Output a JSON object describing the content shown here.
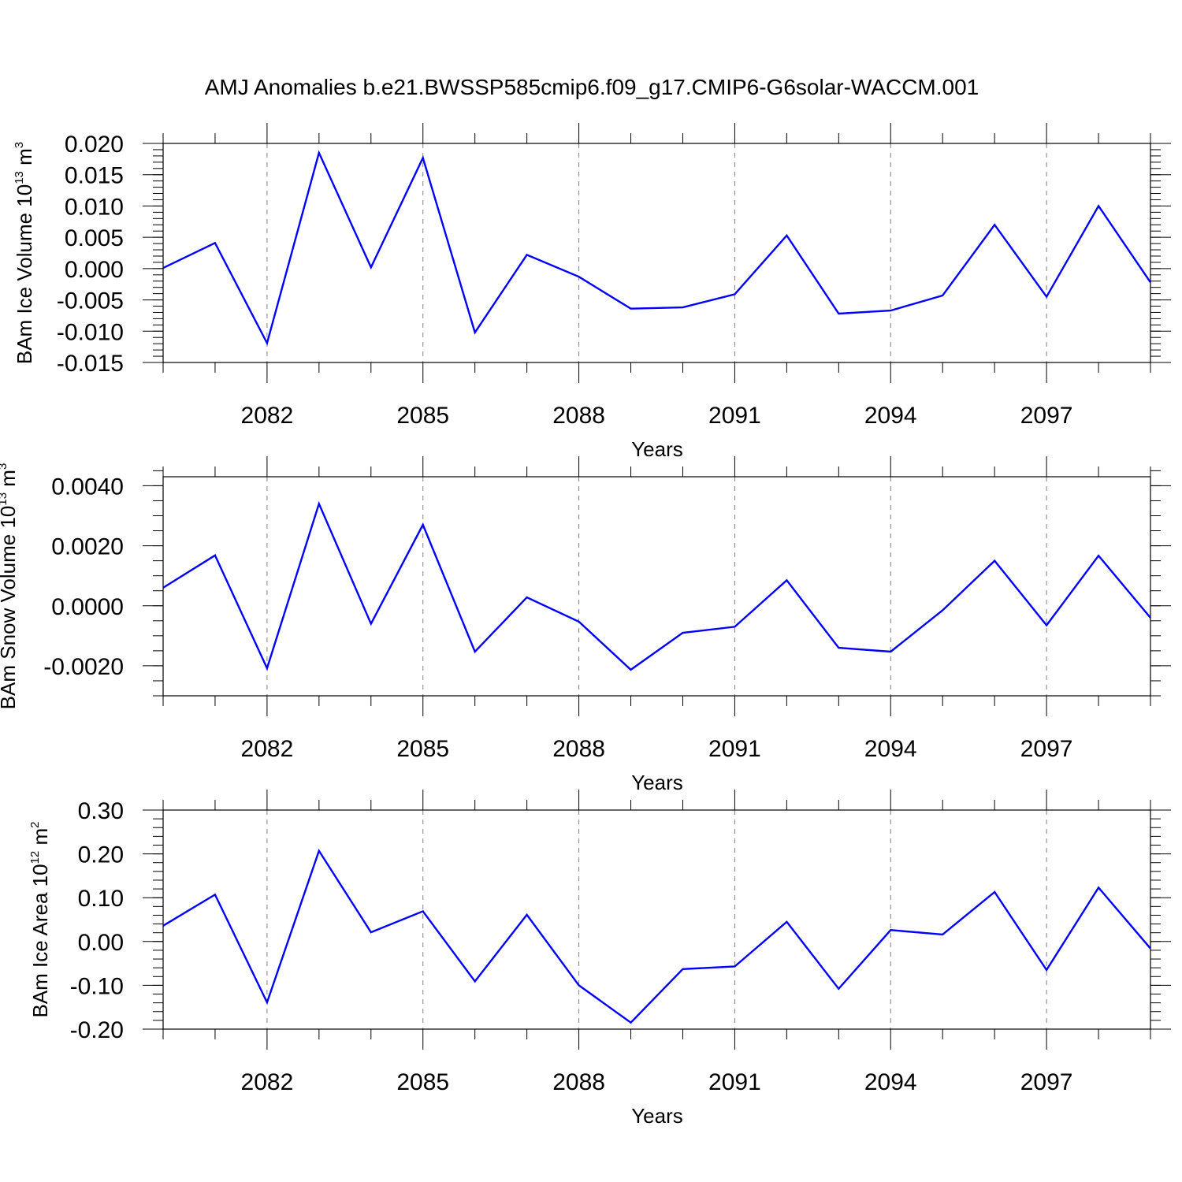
{
  "title": "AMJ Anomalies b.e21.BWSSP585cmip6.f09_g17.CMIP6-G6solar-WACCM.001",
  "colors": {
    "series": "#0000ff",
    "grid": "#808080",
    "axes": "#000000"
  },
  "chart_data": [
    {
      "type": "line",
      "xlabel": "Years",
      "ylabel": {
        "prefix": "BAm Ice Volume 10",
        "exponent": "13",
        "middle": " m",
        "unit_exponent": "3"
      },
      "xlim": [
        2080,
        2099
      ],
      "ylim": [
        -0.015,
        0.02
      ],
      "yticks": [
        -0.015,
        -0.01,
        -0.005,
        0.0,
        0.005,
        0.01,
        0.015,
        0.02
      ],
      "ytick_labels": [
        "-0.015",
        "-0.010",
        "-0.005",
        "0.000",
        "0.005",
        "0.010",
        "0.015",
        "0.020"
      ],
      "yminor_step": 0.001,
      "xticks": [
        2082,
        2085,
        2088,
        2091,
        2094,
        2097
      ],
      "xtick_labels": [
        "2082",
        "2085",
        "2088",
        "2091",
        "2094",
        "2097"
      ],
      "grid": "vertical dashed at major x ticks",
      "x": [
        2080,
        2081,
        2082,
        2083,
        2084,
        2085,
        2086,
        2087,
        2088,
        2089,
        2090,
        2091,
        2092,
        2093,
        2094,
        2095,
        2096,
        2097,
        2098,
        2099
      ],
      "values": [
        0.0001,
        0.0041,
        -0.0119,
        0.0185,
        0.0002,
        0.0177,
        -0.0102,
        0.0022,
        -0.0013,
        -0.0064,
        -0.0062,
        -0.0041,
        0.0053,
        -0.0072,
        -0.0067,
        -0.0043,
        0.007,
        -0.0045,
        0.01,
        -0.0022
      ]
    },
    {
      "type": "line",
      "xlabel": "Years",
      "ylabel": {
        "prefix": "BAm Snow Volume 10",
        "exponent": "13",
        "middle": " m",
        "unit_exponent": "3"
      },
      "xlim": [
        2080,
        2099
      ],
      "ylim": [
        -0.003,
        0.0043
      ],
      "yticks": [
        -0.002,
        0.0,
        0.002,
        0.004
      ],
      "ytick_labels": [
        "-0.0020",
        "0.0000",
        "0.0020",
        "0.0040"
      ],
      "yminor_step": 0.0005,
      "xticks": [
        2082,
        2085,
        2088,
        2091,
        2094,
        2097
      ],
      "xtick_labels": [
        "2082",
        "2085",
        "2088",
        "2091",
        "2094",
        "2097"
      ],
      "grid": "vertical dashed at major x ticks",
      "x": [
        2080,
        2081,
        2082,
        2083,
        2084,
        2085,
        2086,
        2087,
        2088,
        2089,
        2090,
        2091,
        2092,
        2093,
        2094,
        2095,
        2096,
        2097,
        2098,
        2099
      ],
      "values": [
        0.0006,
        0.00168,
        -0.00208,
        0.0034,
        -0.0006,
        0.0027,
        -0.00153,
        0.00028,
        -0.00053,
        -0.00213,
        -0.0009,
        -0.0007,
        0.00085,
        -0.0014,
        -0.00153,
        -0.00015,
        0.0015,
        -0.00065,
        0.00167,
        -0.0004
      ]
    },
    {
      "type": "line",
      "xlabel": "Years",
      "ylabel": {
        "prefix": "BAm Ice Area 10",
        "exponent": "12",
        "middle": " m",
        "unit_exponent": "2"
      },
      "xlim": [
        2080,
        2099
      ],
      "ylim": [
        -0.2,
        0.3
      ],
      "yticks": [
        -0.2,
        -0.1,
        0.0,
        0.1,
        0.2,
        0.3
      ],
      "ytick_labels": [
        "-0.20",
        "-0.10",
        "0.00",
        "0.10",
        "0.20",
        "0.30"
      ],
      "yminor_step": 0.02,
      "xticks": [
        2082,
        2085,
        2088,
        2091,
        2094,
        2097
      ],
      "xtick_labels": [
        "2082",
        "2085",
        "2088",
        "2091",
        "2094",
        "2097"
      ],
      "grid": "vertical dashed at major x ticks",
      "x": [
        2080,
        2081,
        2082,
        2083,
        2084,
        2085,
        2086,
        2087,
        2088,
        2089,
        2090,
        2091,
        2092,
        2093,
        2094,
        2095,
        2096,
        2097,
        2098,
        2099
      ],
      "values": [
        0.036,
        0.107,
        -0.139,
        0.207,
        0.021,
        0.069,
        -0.091,
        0.061,
        -0.1,
        -0.185,
        -0.063,
        -0.057,
        0.045,
        -0.108,
        0.026,
        0.016,
        0.113,
        -0.065,
        0.123,
        -0.016
      ]
    }
  ]
}
